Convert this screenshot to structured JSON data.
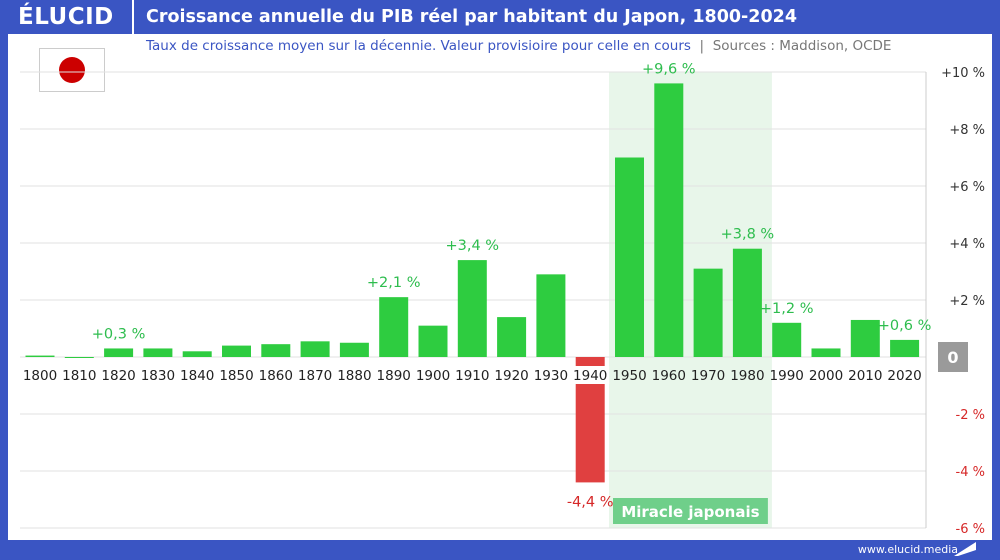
{
  "header": {
    "logo": "ÉLUCID",
    "title": "Croissance annuelle du PIB réel par habitant du Japon, 1800-2024"
  },
  "subtitle": "Taux de croissance moyen sur la décennie. Valeur provisioire pour celle en cours",
  "separator": "|",
  "sources": "Sources : Maddison, OCDE",
  "flag_icon": "japan-flag",
  "footer": {
    "url": "www.elucid.media"
  },
  "colors": {
    "brand": "#3a55c3",
    "positive": "#2ecc40",
    "negative": "#e04040",
    "highlight": "#e8f6ea",
    "highlight_label": "#6fcf8a"
  },
  "chart_data": {
    "type": "bar",
    "title": "Croissance annuelle du PIB réel par habitant du Japon, 1800-2024",
    "categories": [
      "1800",
      "1810",
      "1820",
      "1830",
      "1840",
      "1850",
      "1860",
      "1870",
      "1880",
      "1890",
      "1900",
      "1910",
      "1920",
      "1930",
      "1940",
      "1950",
      "1960",
      "1970",
      "1980",
      "1990",
      "2000",
      "2010",
      "2020"
    ],
    "values": [
      0.05,
      0,
      0.3,
      0.3,
      0.2,
      0.4,
      0.45,
      0.55,
      0.5,
      2.1,
      1.1,
      3.4,
      1.4,
      2.9,
      -4.4,
      7.0,
      9.6,
      3.1,
      3.8,
      1.2,
      0.3,
      1.3,
      0.6
    ],
    "data_labels": {
      "1820": "+0,3 %",
      "1890": "+2,1 %",
      "1910": "+3,4 %",
      "1940": "-4,4 %",
      "1960": "+9,6 %",
      "1980": "+3,8 %",
      "1990": "+1,2 %",
      "2020": "+0,6 %"
    },
    "ylim": [
      -6,
      10
    ],
    "yticks": [
      {
        "v": 10,
        "label": "+10 %"
      },
      {
        "v": 8,
        "label": "+8 %"
      },
      {
        "v": 6,
        "label": "+6 %"
      },
      {
        "v": 4,
        "label": "+4 %"
      },
      {
        "v": 2,
        "label": "+2 %"
      },
      {
        "v": 0,
        "label": "0"
      },
      {
        "v": -2,
        "label": "-2 %"
      },
      {
        "v": -4,
        "label": "-4 %"
      },
      {
        "v": -6,
        "label": "-6 %"
      }
    ],
    "yaxis_position": "right",
    "grid": true,
    "annotation": {
      "label": "Miracle japonais",
      "from": "1950",
      "to": "1980"
    }
  }
}
